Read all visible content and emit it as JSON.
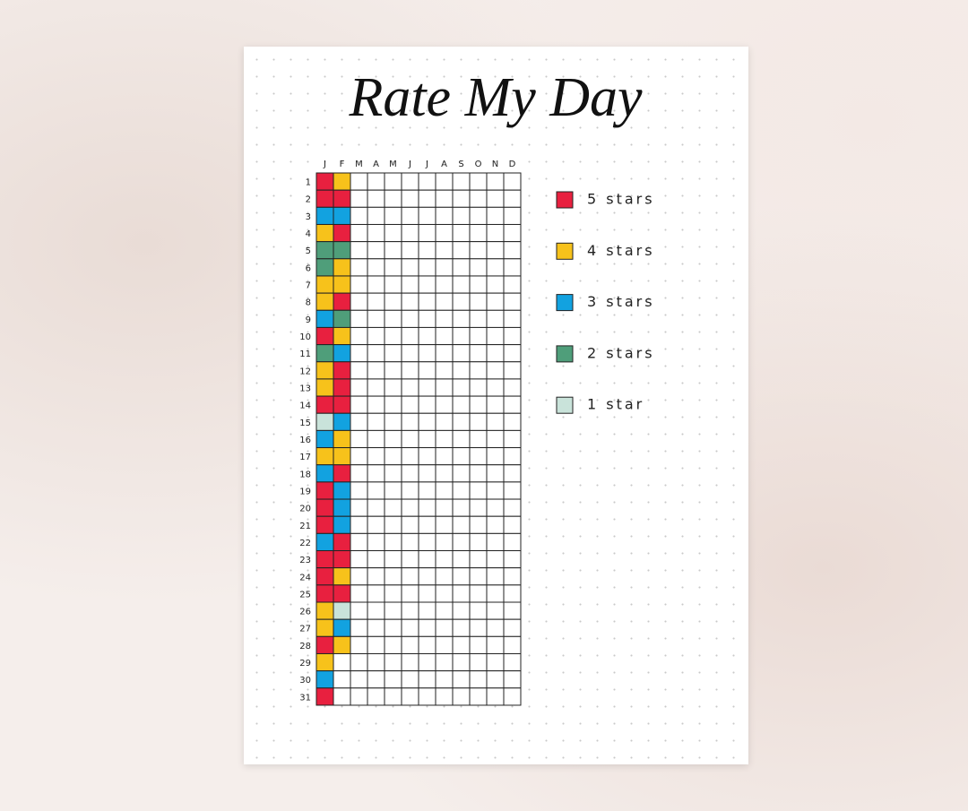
{
  "title": "Rate My Day",
  "months": [
    "J",
    "F",
    "M",
    "A",
    "M",
    "J",
    "J",
    "A",
    "S",
    "O",
    "N",
    "D"
  ],
  "days": [
    1,
    2,
    3,
    4,
    5,
    6,
    7,
    8,
    9,
    10,
    11,
    12,
    13,
    14,
    15,
    16,
    17,
    18,
    19,
    20,
    21,
    22,
    23,
    24,
    25,
    26,
    27,
    28,
    29,
    30,
    31
  ],
  "ratings": [
    [
      5,
      5,
      3,
      4,
      2,
      2,
      4,
      4,
      3,
      5,
      2,
      4,
      4,
      5,
      1,
      3,
      4,
      3,
      5,
      5,
      5,
      3,
      5,
      5,
      5,
      4,
      4,
      5,
      4,
      3,
      5
    ],
    [
      4,
      5,
      3,
      5,
      2,
      4,
      4,
      5,
      2,
      4,
      3,
      5,
      5,
      5,
      3,
      4,
      4,
      5,
      3,
      3,
      3,
      5,
      5,
      4,
      5,
      1,
      3,
      4,
      null,
      null,
      null
    ]
  ],
  "legend": [
    {
      "label": "5 stars",
      "color": "#e8203f"
    },
    {
      "label": "4 stars",
      "color": "#f7c21b"
    },
    {
      "label": "3 stars",
      "color": "#12a2e0"
    },
    {
      "label": "2 stars",
      "color": "#4f9e7a"
    },
    {
      "label": "1 star",
      "color": "#c9e3da"
    }
  ]
}
